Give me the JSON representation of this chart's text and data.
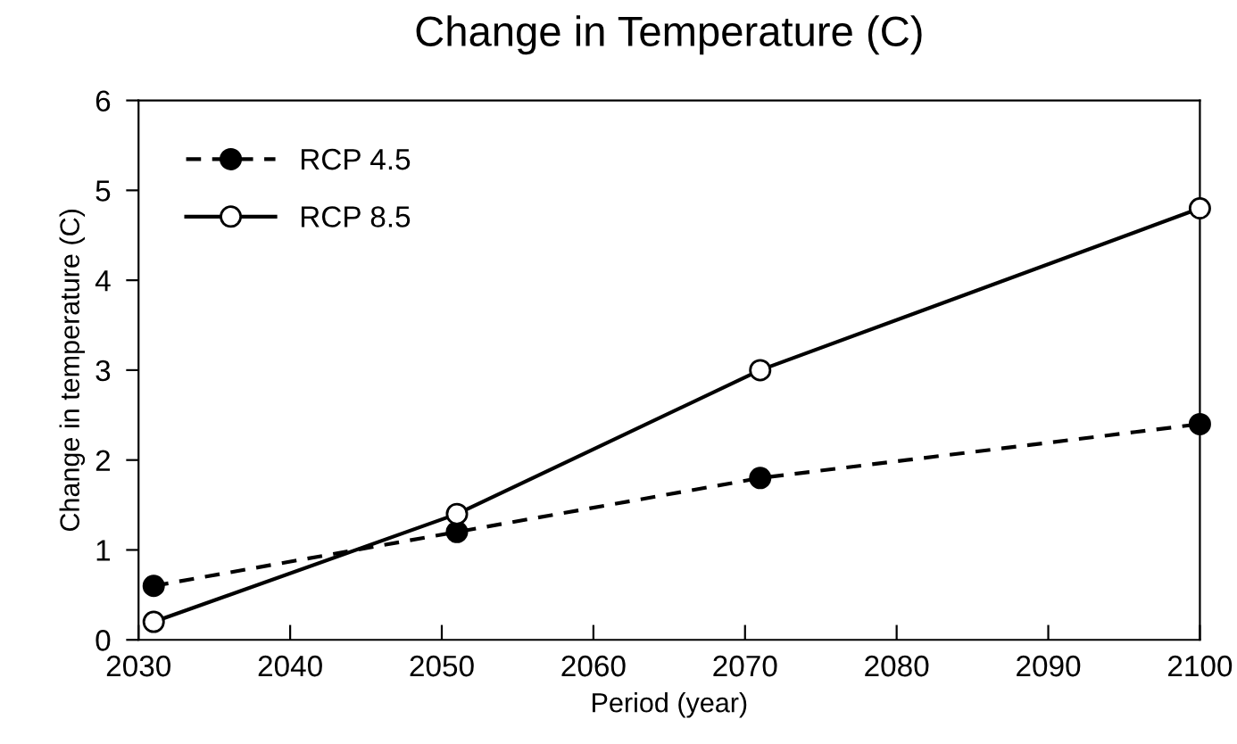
{
  "chart_data": {
    "type": "line",
    "title": "Change in Temperature (C)",
    "xlabel": "Period (year)",
    "ylabel": "Change in temperature (C)",
    "x": [
      2031,
      2051,
      2071,
      2100
    ],
    "series": [
      {
        "name": "RCP 4.5",
        "color": "#000000",
        "values": [
          0.6,
          1.2,
          1.8,
          2.4
        ],
        "line_style": "dashed",
        "marker": "circle"
      },
      {
        "name": "RCP 8.5",
        "color": "#000000",
        "values": [
          0.2,
          1.4,
          3.0,
          4.8
        ],
        "line_style": "solid",
        "marker": "circle"
      }
    ],
    "xlim": [
      2030,
      2100
    ],
    "xticks": [
      2030,
      2040,
      2050,
      2060,
      2070,
      2080,
      2090,
      2100
    ],
    "ylim": [
      0,
      6
    ],
    "yticks": [
      0,
      1,
      2,
      3,
      4,
      5,
      6
    ],
    "grid": false,
    "legend": "top left"
  }
}
